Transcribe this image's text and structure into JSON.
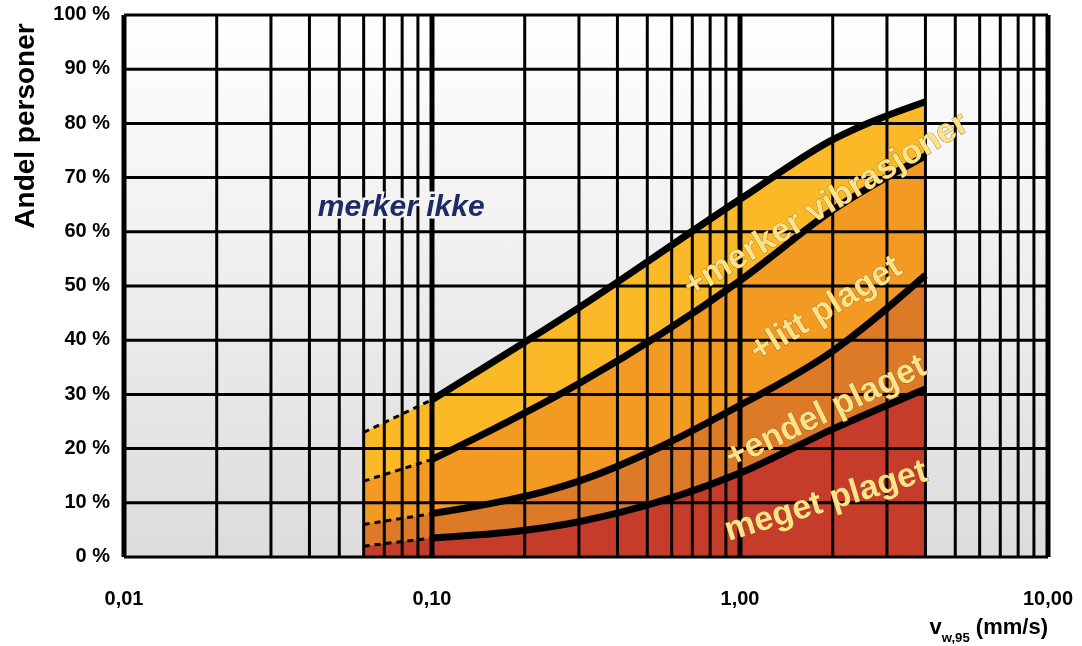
{
  "chart_data": {
    "type": "area",
    "ylabel": "Andel personer",
    "xlabel": "v$_{w,95}$ (mm/s)",
    "log": "x",
    "grid": true,
    "xlim": [
      0.01,
      10
    ],
    "xticks": [
      {
        "value": 0.01,
        "label": "0,01"
      },
      {
        "value": 0.02,
        "label": null
      },
      {
        "value": 0.03,
        "label": null
      },
      {
        "value": 0.04,
        "label": null
      },
      {
        "value": 0.05,
        "label": null
      },
      {
        "value": 0.06,
        "label": null
      },
      {
        "value": 0.07,
        "label": null
      },
      {
        "value": 0.08,
        "label": null
      },
      {
        "value": 0.09,
        "label": null
      },
      {
        "value": 0.1,
        "label": "0,10"
      },
      {
        "value": 0.2,
        "label": null
      },
      {
        "value": 0.3,
        "label": null
      },
      {
        "value": 0.4,
        "label": null
      },
      {
        "value": 0.5,
        "label": null
      },
      {
        "value": 0.6,
        "label": null
      },
      {
        "value": 0.7,
        "label": null
      },
      {
        "value": 0.8,
        "label": null
      },
      {
        "value": 0.9,
        "label": null
      },
      {
        "value": 1,
        "label": "1,00"
      },
      {
        "value": 2,
        "label": null
      },
      {
        "value": 3,
        "label": null
      },
      {
        "value": 4,
        "label": null
      },
      {
        "value": 5,
        "label": null
      },
      {
        "value": 6,
        "label": null
      },
      {
        "value": 7,
        "label": null
      },
      {
        "value": 8,
        "label": null
      },
      {
        "value": 9,
        "label": null
      },
      {
        "value": 10,
        "label": "10,00"
      }
    ],
    "ylim": [
      0,
      100
    ],
    "yticks": [
      {
        "value": 0,
        "label": "0 %"
      },
      {
        "value": 10,
        "label": "10 %"
      },
      {
        "value": 20,
        "label": "20 %"
      },
      {
        "value": 30,
        "label": "30 %"
      },
      {
        "value": 40,
        "label": "40 %"
      },
      {
        "value": 50,
        "label": "50 %"
      },
      {
        "value": 60,
        "label": "60 %"
      },
      {
        "value": 70,
        "label": "70 %"
      },
      {
        "value": 80,
        "label": "80 %"
      },
      {
        "value": 90,
        "label": "90 %"
      },
      {
        "value": 100,
        "label": "100 %"
      }
    ],
    "annotations": [
      "merker ikke"
    ],
    "series": [
      {
        "name": "+merker vibrasjoner",
        "color": "#fbb928",
        "x": [
          0.1,
          0.3,
          1,
          2,
          4
        ],
        "values": [
          29,
          46,
          66,
          77,
          84
        ],
        "line_style": "solid"
      },
      {
        "name": "+litt plaget",
        "color": "#f39a22",
        "x": [
          0.1,
          0.3,
          1,
          2,
          4
        ],
        "values": [
          18,
          32,
          51,
          64,
          74
        ],
        "line_style": "solid"
      },
      {
        "name": "+endel plaget",
        "color": "#dc7a28",
        "x": [
          0.1,
          0.3,
          1,
          2,
          4
        ],
        "values": [
          8,
          14,
          28,
          38,
          52
        ],
        "line_style": "solid"
      },
      {
        "name": "meget plaget",
        "color": "#c53d2a",
        "x": [
          0.1,
          0.3,
          1,
          2,
          4
        ],
        "values": [
          3.5,
          6.5,
          15.5,
          23.6,
          31
        ],
        "line_style": "solid"
      },
      {
        "color": "#fbb928",
        "x": [
          0.06,
          0.1
        ],
        "values": [
          23,
          29
        ],
        "line_style": "dashed"
      },
      {
        "color": "#f39a22",
        "x": [
          0.06,
          0.1
        ],
        "values": [
          14,
          18
        ],
        "line_style": "dashed"
      },
      {
        "color": "#dc7a28",
        "x": [
          0.06,
          0.1
        ],
        "values": [
          6,
          8
        ],
        "line_style": "dashed"
      },
      {
        "color": "#c53d2a",
        "x": [
          0.06,
          0.1
        ],
        "values": [
          2,
          3.5
        ],
        "line_style": "dashed"
      }
    ]
  }
}
